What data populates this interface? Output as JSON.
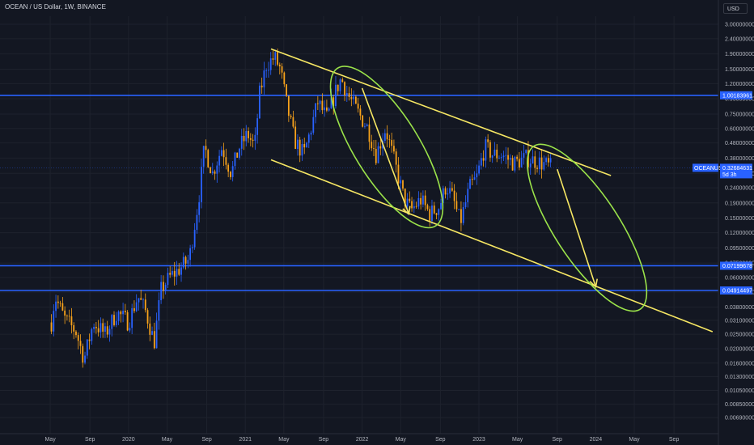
{
  "header": {
    "symbol_title": "OCEAN / US Dollar, 1W, BINANCE",
    "currency": "USD"
  },
  "colors": {
    "background": "#131722",
    "bull_candle": "#2962ff",
    "bear_candle": "#f7a21b",
    "trend_line": "#f5e663",
    "ellipse": "#9be34a",
    "level_line": "#2962ff",
    "grid": "#1e222d"
  },
  "chart_data": {
    "type": "candlestick",
    "title": "OCEAN / US Dollar, 1W, BINANCE",
    "y_scale": "log",
    "ylim": [
      0.0058,
      3.4
    ],
    "y_ticks": [
      "3.00000000",
      "2.40000000",
      "1.90000000",
      "1.50000000",
      "1.20000000",
      "0.95000000",
      "0.75000000",
      "0.60000000",
      "0.48000000",
      "0.38000000",
      "0.30000000",
      "0.24000000",
      "0.19000000",
      "0.15000000",
      "0.12000000",
      "0.09500000",
      "0.07500000",
      "0.06000000",
      "0.04800000",
      "0.03800000",
      "0.03100000",
      "0.02500000",
      "0.02000000",
      "0.01600000",
      "0.01300000",
      "0.01050000",
      "0.00850000",
      "0.00690000"
    ],
    "x_ticks": [
      "May",
      "Sep",
      "2020",
      "May",
      "Sep",
      "2021",
      "May",
      "Sep",
      "2022",
      "May",
      "Sep",
      "2023",
      "May",
      "Sep",
      "2024",
      "May",
      "Sep"
    ],
    "x_tick_dates": [
      2019.33,
      2019.67,
      2020.0,
      2020.33,
      2020.67,
      2021.0,
      2021.33,
      2021.67,
      2022.0,
      2022.33,
      2022.67,
      2023.0,
      2023.33,
      2023.67,
      2024.0,
      2024.33,
      2024.67
    ],
    "x_range": [
      2018.9,
      2025.05
    ],
    "price_levels": [
      {
        "label": "1.00183961",
        "value": 1.00183961
      },
      {
        "label": "0.07199678",
        "value": 0.07199678
      },
      {
        "label": "0.04914497",
        "value": 0.04914497
      }
    ],
    "current_price": {
      "symbol": "OCEANUSD",
      "label": "0.32684631",
      "countdown": "5d 3h",
      "value": 0.32684631
    },
    "candle_waypoints": [
      [
        2019.34,
        0.03
      ],
      [
        2019.37,
        0.045
      ],
      [
        2019.45,
        0.032
      ],
      [
        2019.55,
        0.026
      ],
      [
        2019.62,
        0.017
      ],
      [
        2019.7,
        0.03
      ],
      [
        2019.8,
        0.025
      ],
      [
        2019.9,
        0.035
      ],
      [
        2020.0,
        0.03
      ],
      [
        2020.08,
        0.045
      ],
      [
        2020.15,
        0.035
      ],
      [
        2020.22,
        0.022
      ],
      [
        2020.28,
        0.05
      ],
      [
        2020.35,
        0.06
      ],
      [
        2020.45,
        0.07
      ],
      [
        2020.52,
        0.08
      ],
      [
        2020.6,
        0.2
      ],
      [
        2020.65,
        0.45
      ],
      [
        2020.72,
        0.3
      ],
      [
        2020.8,
        0.45
      ],
      [
        2020.88,
        0.3
      ],
      [
        2020.95,
        0.45
      ],
      [
        2021.02,
        0.55
      ],
      [
        2021.08,
        0.45
      ],
      [
        2021.12,
        1.0
      ],
      [
        2021.18,
        1.6
      ],
      [
        2021.25,
        1.8
      ],
      [
        2021.3,
        1.5
      ],
      [
        2021.35,
        0.9
      ],
      [
        2021.42,
        0.5
      ],
      [
        2021.5,
        0.4
      ],
      [
        2021.55,
        0.55
      ],
      [
        2021.62,
        0.9
      ],
      [
        2021.7,
        0.7
      ],
      [
        2021.78,
        1.1
      ],
      [
        2021.82,
        1.3
      ],
      [
        2021.88,
        1.0
      ],
      [
        2021.95,
        0.8
      ],
      [
        2022.05,
        0.6
      ],
      [
        2022.12,
        0.4
      ],
      [
        2022.2,
        0.6
      ],
      [
        2022.28,
        0.35
      ],
      [
        2022.36,
        0.2
      ],
      [
        2022.42,
        0.17
      ],
      [
        2022.5,
        0.2
      ],
      [
        2022.58,
        0.16
      ],
      [
        2022.66,
        0.18
      ],
      [
        2022.72,
        0.25
      ],
      [
        2022.78,
        0.2
      ],
      [
        2022.84,
        0.14
      ],
      [
        2022.92,
        0.24
      ],
      [
        2022.98,
        0.28
      ],
      [
        2023.05,
        0.45
      ],
      [
        2023.12,
        0.4
      ],
      [
        2023.2,
        0.4
      ],
      [
        2023.3,
        0.35
      ],
      [
        2023.4,
        0.38
      ],
      [
        2023.5,
        0.36
      ],
      [
        2023.58,
        0.34
      ],
      [
        2023.62,
        0.33
      ]
    ],
    "trend_lines": [
      {
        "x": [
          2021.22,
          2024.13
        ],
        "y": [
          2.05,
          0.29
        ]
      },
      {
        "x": [
          2021.22,
          2025.0
        ],
        "y": [
          0.37,
          0.026
        ]
      },
      {
        "x": [
          2022.0,
          2022.4
        ],
        "y": [
          1.12,
          0.16
        ],
        "arrow": true
      },
      {
        "x": [
          2023.67,
          2024.0
        ],
        "y": [
          0.32,
          0.052
        ],
        "arrow": true
      }
    ],
    "ellipses": [
      {
        "x": [
          2021.82,
          2022.6
        ],
        "y": [
          1.4,
          0.145
        ]
      },
      {
        "x": [
          2023.5,
          2024.35
        ],
        "y": [
          0.42,
          0.04
        ]
      }
    ]
  }
}
